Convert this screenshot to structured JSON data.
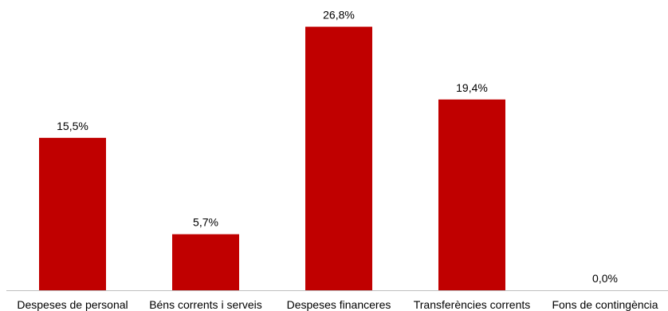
{
  "chart_data": {
    "type": "bar",
    "categories": [
      "Despeses de personal",
      "Béns corrents i serveis",
      "Despeses financeres",
      "Transferències corrents",
      "Fons de contingència"
    ],
    "values": [
      15.5,
      5.7,
      26.8,
      19.4,
      0.0
    ],
    "data_labels": [
      "15,5%",
      "5,7%",
      "26,8%",
      "19,4%",
      "0,0%"
    ],
    "unit": "%",
    "title": "",
    "xlabel": "",
    "ylabel": "",
    "ylim": [
      0,
      30
    ],
    "grid": false,
    "legend": "none",
    "colors": {
      "bar": "#c00000",
      "axis": "#bfbfbf"
    }
  }
}
